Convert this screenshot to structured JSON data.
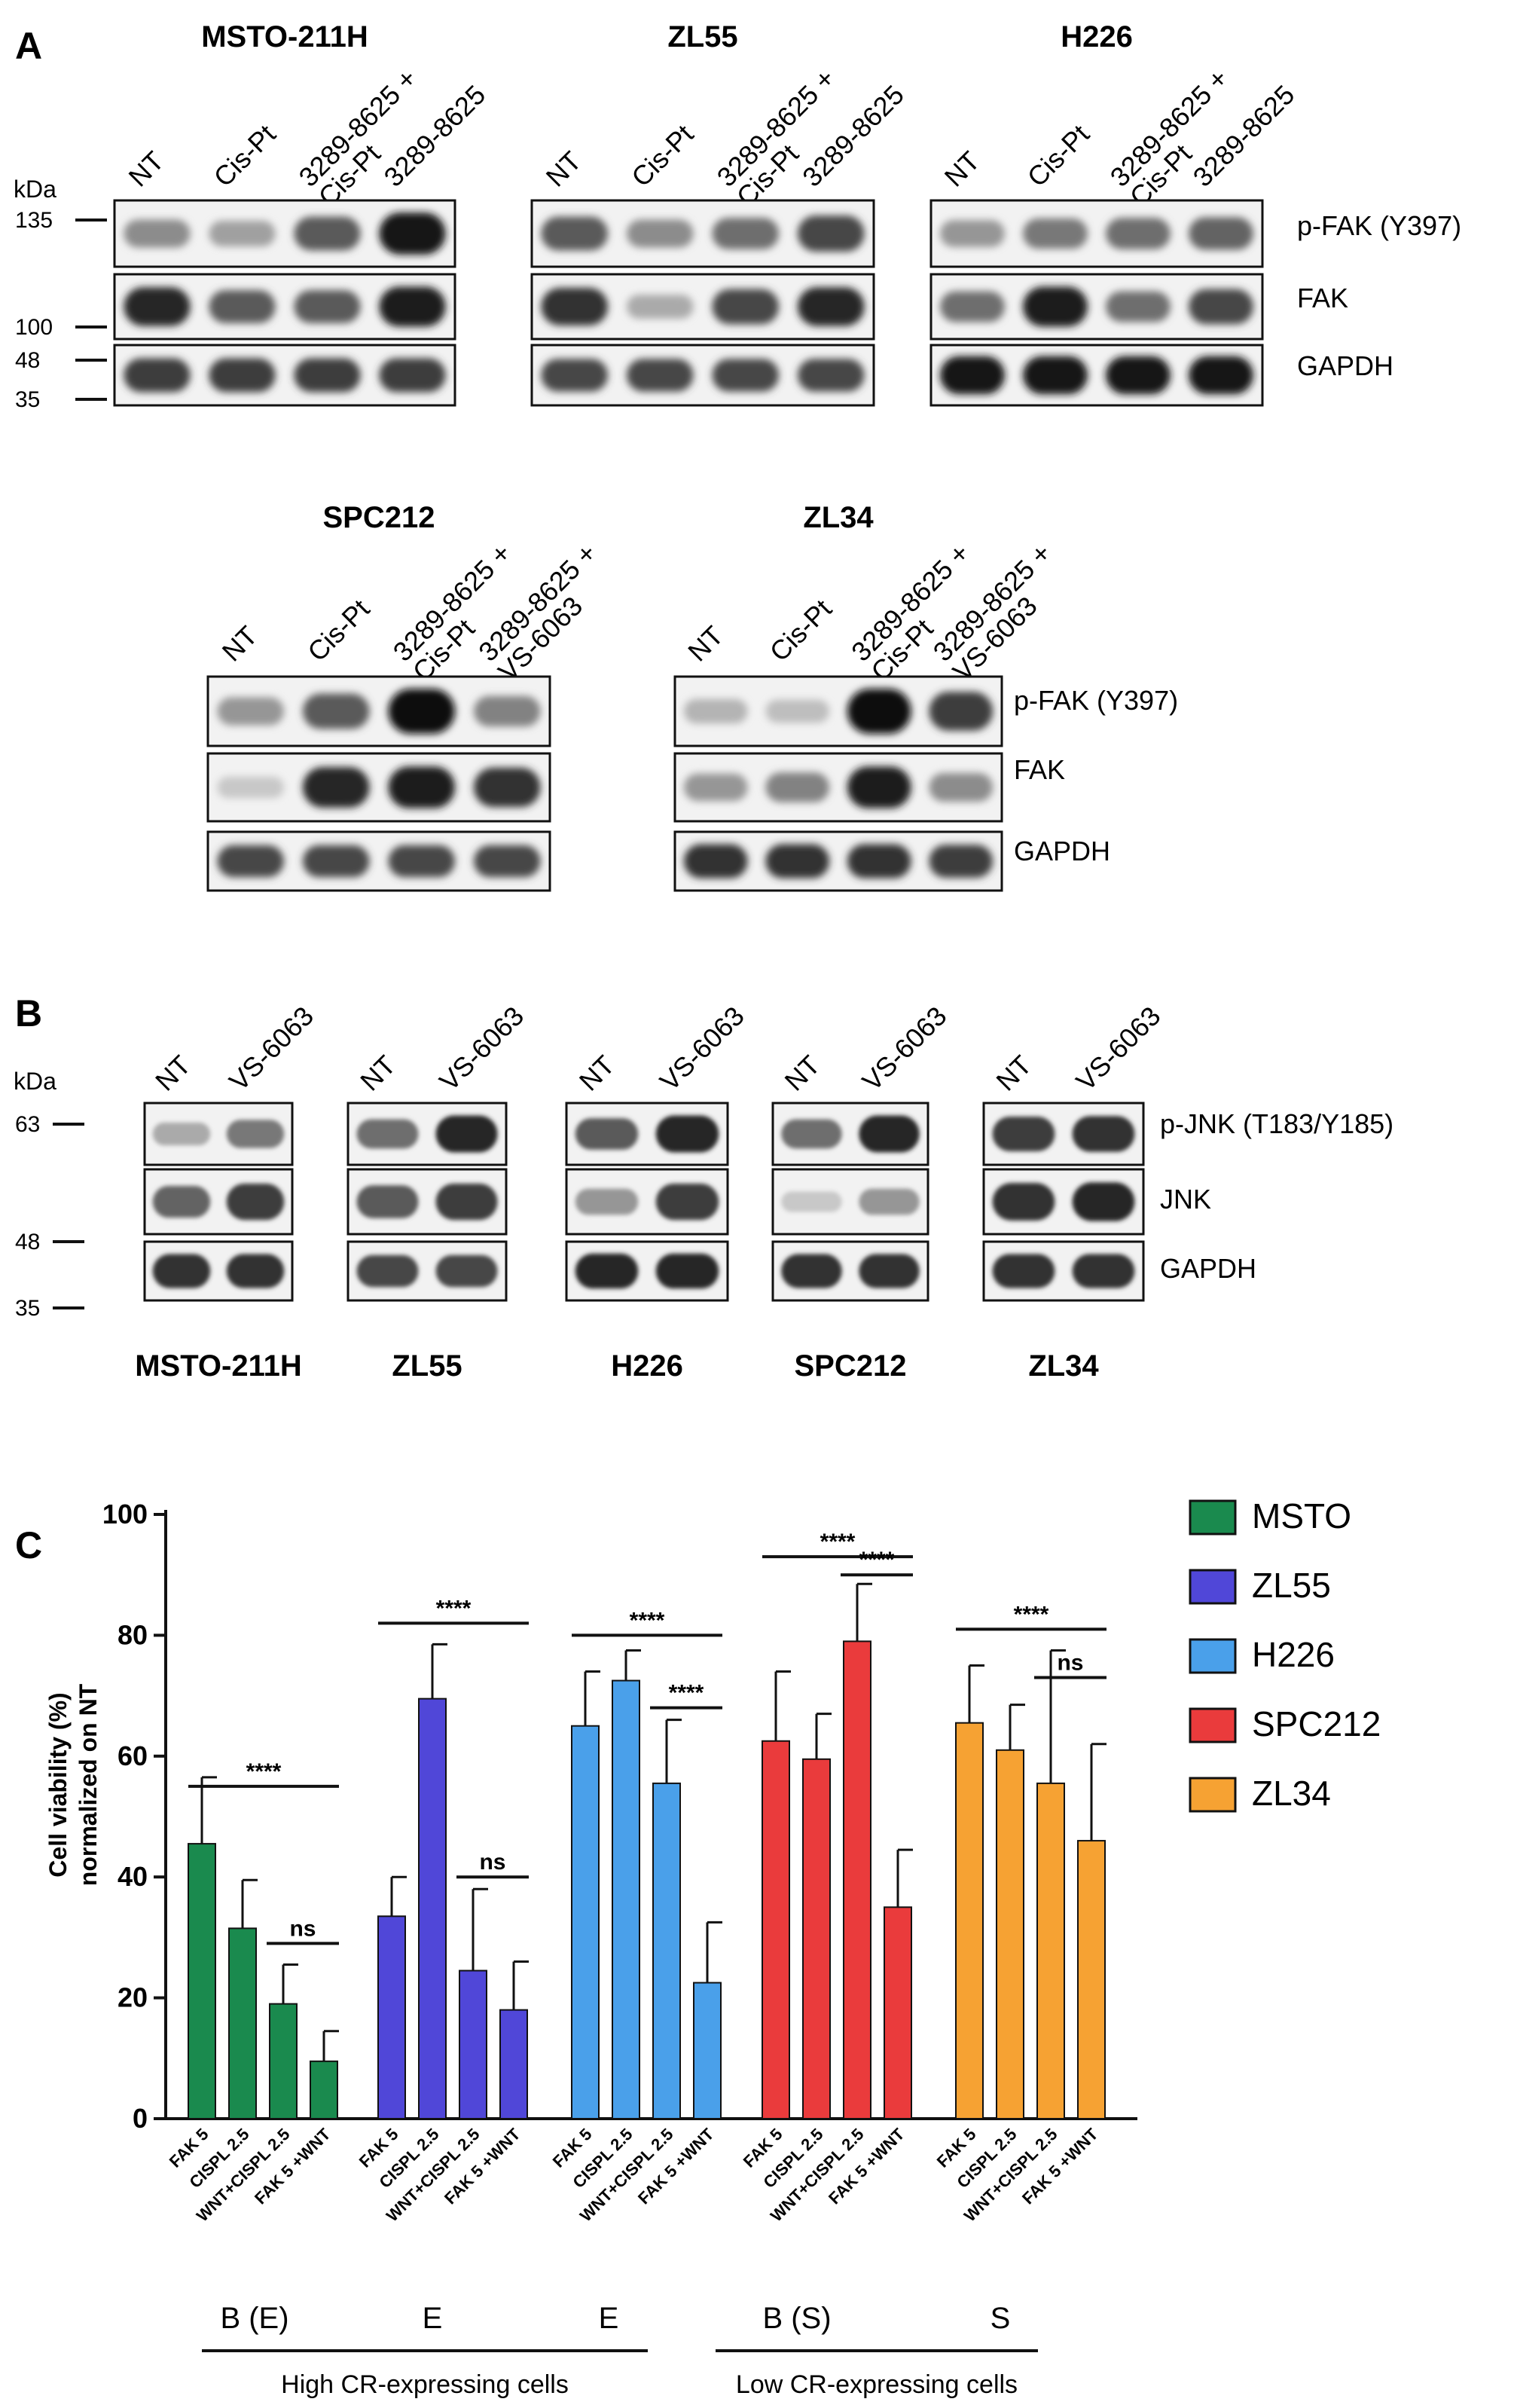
{
  "panelA": {
    "letter": "A",
    "kda_label": "kDa",
    "markers": [
      "135",
      "100",
      "48",
      "35"
    ],
    "blot_labels": [
      "p-FAK (Y397)",
      "FAK",
      "GAPDH"
    ],
    "top_groups": [
      {
        "title": "MSTO-211H",
        "lanes": [
          "NT",
          "Cis-Pt",
          "3289-8625 +\nCis-Pt",
          "3289-8625"
        ]
      },
      {
        "title": "ZL55",
        "lanes": [
          "NT",
          "Cis-Pt",
          "3289-8625 +\nCis-Pt",
          "3289-8625"
        ]
      },
      {
        "title": "H226",
        "lanes": [
          "NT",
          "Cis-Pt",
          "3289-8625 +\nCis-Pt",
          "3289-8625"
        ]
      }
    ],
    "bottom_groups": [
      {
        "title": "SPC212",
        "lanes": [
          "NT",
          "Cis-Pt",
          "3289-8625 +\nCis-Pt",
          "3289-8625 +\nVS-6063"
        ]
      },
      {
        "title": "ZL34",
        "lanes": [
          "NT",
          "Cis-Pt",
          "3289-8625 +\nCis-Pt",
          "3289-8625 +\nVS-6063"
        ]
      }
    ]
  },
  "panelB": {
    "letter": "B",
    "kda_label": "kDa",
    "markers": [
      "63",
      "48",
      "35"
    ],
    "blot_labels": [
      "p-JNK (T183/Y185)",
      "JNK",
      "GAPDH"
    ],
    "lanes": [
      "NT",
      "VS-6063"
    ],
    "cell_lines": [
      "MSTO-211H",
      "ZL55",
      "H226",
      "SPC212",
      "ZL34"
    ]
  },
  "chart_data": {
    "type": "bar",
    "panel_letter": "C",
    "ylabel_line1": "Cell viability (%)",
    "ylabel_line2": "normalized on NT",
    "ylim": [
      0,
      100
    ],
    "yticks": [
      "0",
      "20",
      "40",
      "60",
      "80",
      "100"
    ],
    "categories": [
      "FAK 5",
      "CISPL 2.5",
      "WNT+CISPL 2.5",
      "FAK 5 +WNT"
    ],
    "series": [
      {
        "name": "MSTO",
        "color": "#1a8a4e",
        "values": [
          45.5,
          31.5,
          19,
          9.5
        ],
        "errors": [
          11,
          8,
          6.5,
          5
        ]
      },
      {
        "name": "ZL55",
        "color": "#5047d8",
        "values": [
          33.5,
          69.5,
          24.5,
          18
        ],
        "errors": [
          6.5,
          9,
          13.5,
          8
        ]
      },
      {
        "name": "H226",
        "color": "#4aa0ea",
        "values": [
          65,
          72.5,
          55.5,
          22.5
        ],
        "errors": [
          9,
          5,
          10.5,
          10
        ]
      },
      {
        "name": "SPC212",
        "color": "#ea3b3c",
        "values": [
          62.5,
          59.5,
          79,
          35
        ],
        "errors": [
          11.5,
          7.5,
          9.5,
          9.5
        ]
      },
      {
        "name": "ZL34",
        "color": "#f6a233",
        "values": [
          65.5,
          61,
          55.5,
          46
        ],
        "errors": [
          9.5,
          7.5,
          22,
          16
        ]
      }
    ],
    "significance": {
      "four_star": "****",
      "ns": "ns",
      "items": [
        {
          "group": 0,
          "from": 0,
          "to": 3,
          "y": 55,
          "label": "****"
        },
        {
          "group": 0,
          "from": 2,
          "to": 3,
          "y": 29,
          "label": "ns"
        },
        {
          "group": 1,
          "from": 0,
          "to": 3,
          "y": 82,
          "label": "****"
        },
        {
          "group": 1,
          "from": 2,
          "to": 3,
          "y": 40,
          "label": "ns"
        },
        {
          "group": 2,
          "from": 0,
          "to": 3,
          "y": 80,
          "label": "****"
        },
        {
          "group": 2,
          "from": 2,
          "to": 3,
          "y": 68,
          "label": "****"
        },
        {
          "group": 3,
          "from": 0,
          "to": 3,
          "y": 93,
          "label": "****"
        },
        {
          "group": 3,
          "from": 2,
          "to": 3,
          "y": 90,
          "label": "****"
        },
        {
          "group": 4,
          "from": 0,
          "to": 3,
          "y": 81,
          "label": "****"
        },
        {
          "group": 4,
          "from": 2,
          "to": 3,
          "y": 73,
          "label": "ns"
        }
      ]
    },
    "group_tags": [
      "B (E)",
      "E",
      "E",
      "B (S)",
      "S"
    ],
    "brackets": [
      "High CR-expressing cells",
      "Low CR-expressing cells"
    ],
    "legend_position": "top-right"
  }
}
